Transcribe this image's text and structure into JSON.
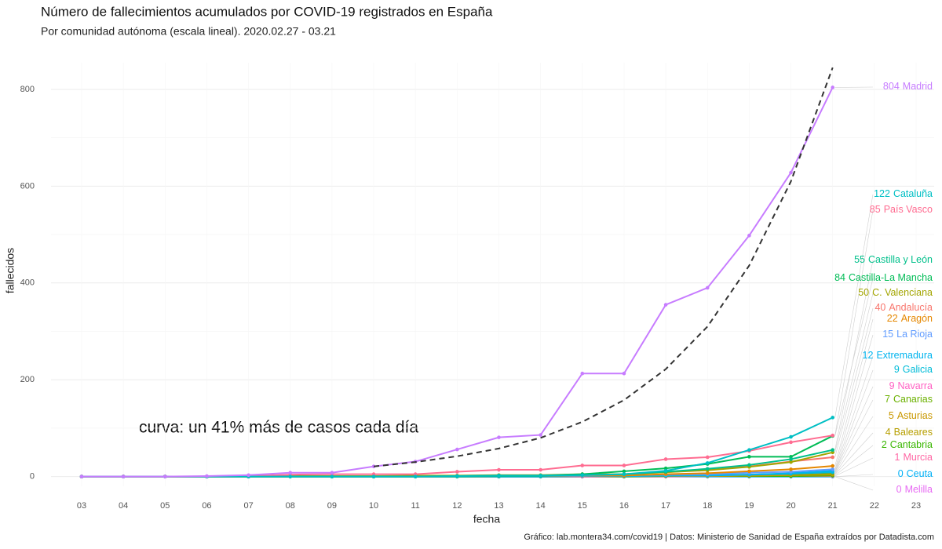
{
  "chart_data": {
    "type": "line",
    "title": "Número de fallecimientos acumulados por COVID-19 registrados en España",
    "subtitle": "Por comunidad autónoma (escala lineal). 2020.02.27 - 03.21",
    "xlabel": "fecha",
    "ylabel": "fallecidos",
    "caption": "Gráfico: lab.montera34.com/covid19 | Datos: Ministerio de Sanidad de España extraídos por Datadista.com",
    "annotation": "curva: un 41% más de casos cada día",
    "categories": [
      "03",
      "04",
      "05",
      "06",
      "07",
      "08",
      "09",
      "10",
      "11",
      "12",
      "13",
      "14",
      "15",
      "16",
      "17",
      "18",
      "19",
      "20",
      "21",
      "22",
      "23"
    ],
    "ylim": [
      -20,
      855
    ],
    "yticks": [
      0,
      200,
      400,
      600,
      800
    ],
    "grid": true,
    "series": [
      {
        "name": "Madrid",
        "color": "#C77CFF",
        "values": [
          0,
          0,
          0,
          1,
          3,
          8,
          8,
          21,
          31,
          56,
          81,
          86,
          213,
          213,
          355,
          390,
          498,
          628,
          804,
          null,
          null
        ]
      },
      {
        "name": "Cataluña",
        "color": "#00BFC4",
        "values": [
          0,
          0,
          0,
          0,
          0,
          0,
          0,
          0,
          0,
          1,
          2,
          2,
          3,
          5,
          12,
          28,
          55,
          82,
          122,
          null,
          null
        ]
      },
      {
        "name": "País Vasco",
        "color": "#FF6C91",
        "values": [
          0,
          0,
          0,
          0,
          1,
          4,
          5,
          5,
          5,
          10,
          14,
          14,
          23,
          23,
          36,
          40,
          53,
          71,
          85,
          null,
          null
        ]
      },
      {
        "name": "Castilla y León",
        "color": "#00C08B",
        "values": [
          0,
          0,
          0,
          0,
          0,
          0,
          0,
          0,
          0,
          0,
          1,
          1,
          3,
          5,
          10,
          16,
          24,
          36,
          55,
          null,
          null
        ]
      },
      {
        "name": "Castilla-La Mancha",
        "color": "#00BC56",
        "values": [
          0,
          0,
          0,
          0,
          0,
          0,
          0,
          0,
          0,
          1,
          2,
          2,
          5,
          11,
          17,
          26,
          41,
          41,
          84,
          null,
          null
        ]
      },
      {
        "name": "C. Valenciana",
        "color": "#A3A500",
        "values": [
          0,
          0,
          0,
          0,
          0,
          1,
          1,
          1,
          2,
          2,
          3,
          3,
          5,
          5,
          9,
          13,
          20,
          30,
          50,
          null,
          null
        ]
      },
      {
        "name": "Andalucía",
        "color": "#F8766D",
        "values": [
          0,
          0,
          0,
          0,
          0,
          0,
          0,
          0,
          0,
          0,
          1,
          1,
          2,
          5,
          9,
          14,
          21,
          31,
          40,
          null,
          null
        ]
      },
      {
        "name": "Aragón",
        "color": "#E58700",
        "values": [
          0,
          0,
          0,
          0,
          0,
          0,
          0,
          0,
          0,
          1,
          1,
          1,
          2,
          2,
          5,
          7,
          11,
          15,
          22,
          null,
          null
        ]
      },
      {
        "name": "La Rioja",
        "color": "#619CFF",
        "values": [
          0,
          0,
          0,
          0,
          0,
          0,
          0,
          1,
          1,
          1,
          2,
          2,
          3,
          3,
          4,
          5,
          8,
          10,
          15,
          null,
          null
        ]
      },
      {
        "name": "Extremadura",
        "color": "#00B4EF",
        "values": [
          0,
          0,
          0,
          0,
          0,
          0,
          0,
          0,
          0,
          0,
          0,
          0,
          1,
          1,
          2,
          3,
          4,
          7,
          12,
          null,
          null
        ]
      },
      {
        "name": "Galicia",
        "color": "#00BCD8",
        "values": [
          0,
          0,
          0,
          0,
          0,
          0,
          0,
          0,
          0,
          0,
          0,
          0,
          1,
          1,
          2,
          2,
          4,
          6,
          9,
          null,
          null
        ]
      },
      {
        "name": "Navarra",
        "color": "#FF61C3",
        "values": [
          0,
          0,
          0,
          0,
          0,
          0,
          0,
          0,
          0,
          0,
          0,
          0,
          0,
          1,
          2,
          2,
          4,
          6,
          9,
          null,
          null
        ]
      },
      {
        "name": "Canarias",
        "color": "#6BB100",
        "values": [
          0,
          0,
          0,
          0,
          0,
          0,
          0,
          0,
          0,
          0,
          0,
          1,
          1,
          1,
          1,
          3,
          4,
          5,
          7,
          null,
          null
        ]
      },
      {
        "name": "Asturias",
        "color": "#C99800",
        "values": [
          0,
          0,
          0,
          0,
          0,
          0,
          0,
          0,
          0,
          0,
          0,
          0,
          0,
          1,
          1,
          1,
          2,
          3,
          5,
          null,
          null
        ]
      },
      {
        "name": "Baleares",
        "color": "#B79F00",
        "values": [
          0,
          0,
          0,
          0,
          0,
          0,
          0,
          0,
          0,
          0,
          0,
          0,
          1,
          1,
          1,
          1,
          2,
          3,
          4,
          null,
          null
        ]
      },
      {
        "name": "Cantabria",
        "color": "#39B600",
        "values": [
          0,
          0,
          0,
          0,
          0,
          0,
          0,
          0,
          0,
          0,
          0,
          0,
          0,
          0,
          1,
          1,
          1,
          1,
          2,
          null,
          null
        ]
      },
      {
        "name": "Murcia",
        "color": "#FF67A4",
        "values": [
          0,
          0,
          0,
          0,
          0,
          0,
          0,
          0,
          0,
          0,
          0,
          0,
          0,
          0,
          0,
          1,
          1,
          1,
          1,
          null,
          null
        ]
      },
      {
        "name": "Ceuta",
        "color": "#00B0F6",
        "values": [
          0,
          0,
          0,
          0,
          0,
          0,
          0,
          0,
          0,
          0,
          0,
          0,
          0,
          0,
          0,
          0,
          0,
          0,
          0,
          null,
          null
        ]
      },
      {
        "name": "Melilla",
        "color": "#E76BF3",
        "values": [
          0,
          0,
          0,
          0,
          0,
          0,
          0,
          0,
          0,
          0,
          0,
          0,
          0,
          0,
          0,
          0,
          0,
          0,
          0,
          null,
          null
        ]
      }
    ],
    "curve": {
      "color": "#333333",
      "values": [
        null,
        null,
        null,
        null,
        null,
        null,
        null,
        21,
        30,
        42,
        58,
        80,
        113,
        158,
        222,
        310,
        436,
        610,
        845,
        null,
        null
      ]
    }
  }
}
